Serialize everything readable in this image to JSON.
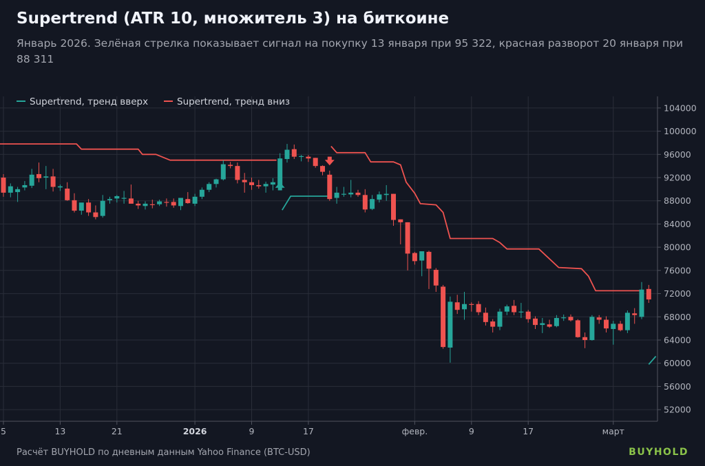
{
  "title": "Supertrend (ATR 10, множитель 3) на биткоине",
  "subtitle": "Январь 2026. Зелёная стрелка показывает сигнал на покупку 13 января при 95 322, красная разворот 20 января при 88 311",
  "footer": "Расчёт BUYHOLD по дневным данным Yahoo Finance (BTC-USD)",
  "brand": "BUYHOLD",
  "colors": {
    "background": "#131722",
    "up": "#26a69a",
    "down": "#ef5350",
    "grid": "#2a2e39",
    "text": "#b2b5be"
  },
  "chart_data": {
    "type": "candlestick",
    "title": "Supertrend (ATR 10, множитель 3) на биткоине",
    "ylim": [
      50000,
      106000
    ],
    "grid": true,
    "legend_position": "top-left",
    "yticks": [
      52000,
      56000,
      60000,
      64000,
      68000,
      72000,
      76000,
      80000,
      84000,
      88000,
      92000,
      96000,
      100000,
      104000
    ],
    "ytick_labels": [
      "52000",
      "56000",
      "60000",
      "64000",
      "68000",
      "72000",
      "76000",
      "80000",
      "84000",
      "88000",
      "92000",
      "96000",
      "100000",
      "104000"
    ],
    "xticks": [
      {
        "label": "5",
        "day": 0,
        "bold": false
      },
      {
        "label": "13",
        "day": 8,
        "bold": false
      },
      {
        "label": "21",
        "day": 16,
        "bold": false
      },
      {
        "label": "2026",
        "day": 27,
        "bold": true
      },
      {
        "label": "9",
        "day": 35,
        "bold": false
      },
      {
        "label": "17",
        "day": 43,
        "bold": false
      },
      {
        "label": "февр.",
        "day": 58,
        "bold": false
      },
      {
        "label": "9",
        "day": 66,
        "bold": false
      },
      {
        "label": "17",
        "day": 74,
        "bold": false
      },
      {
        "label": "март",
        "day": 86,
        "bold": false
      }
    ],
    "legend": [
      {
        "label": "Supertrend, тренд вверх",
        "color": "#26a69a"
      },
      {
        "label": "Supertrend, тренд вниз",
        "color": "#ef5350"
      }
    ],
    "candles": [
      [
        0,
        92000,
        92600,
        88700,
        89400
      ],
      [
        1,
        89400,
        91000,
        88600,
        90500
      ],
      [
        2,
        89500,
        90400,
        87800,
        90000
      ],
      [
        3,
        90300,
        91400,
        89800,
        90700
      ],
      [
        4,
        90600,
        93500,
        90200,
        92500
      ],
      [
        5,
        92600,
        94600,
        91200,
        91900
      ],
      [
        6,
        92000,
        94000,
        90000,
        92200
      ],
      [
        7,
        92200,
        93500,
        89600,
        90400
      ],
      [
        8,
        90300,
        90800,
        89700,
        90500
      ],
      [
        9,
        90100,
        91200,
        88000,
        88100
      ],
      [
        10,
        88100,
        89300,
        86000,
        86300
      ],
      [
        11,
        86300,
        87600,
        85600,
        87700
      ],
      [
        12,
        87700,
        88300,
        85400,
        86000
      ],
      [
        13,
        86000,
        87200,
        84800,
        85200
      ],
      [
        14,
        85400,
        89000,
        85100,
        88000
      ],
      [
        15,
        88100,
        88700,
        87500,
        88300
      ],
      [
        16,
        88400,
        89000,
        87700,
        88800
      ],
      [
        17,
        88400,
        89700,
        87500,
        88500
      ],
      [
        18,
        88400,
        90800,
        87600,
        87500
      ],
      [
        19,
        87500,
        88000,
        86600,
        87200
      ],
      [
        20,
        87100,
        87900,
        86500,
        87500
      ],
      [
        21,
        87400,
        88200,
        86700,
        87300
      ],
      [
        22,
        87400,
        88200,
        87100,
        87900
      ],
      [
        23,
        87800,
        88400,
        87000,
        87700
      ],
      [
        24,
        87800,
        88400,
        86800,
        87200
      ],
      [
        25,
        87100,
        88400,
        86400,
        88500
      ],
      [
        26,
        88300,
        89500,
        87500,
        87600
      ],
      [
        27,
        87500,
        89200,
        87100,
        88700
      ],
      [
        28,
        88700,
        90300,
        88300,
        89900
      ],
      [
        29,
        89900,
        91200,
        89500,
        90900
      ],
      [
        30,
        90900,
        91800,
        90300,
        91700
      ],
      [
        31,
        91700,
        95000,
        91500,
        94300
      ],
      [
        32,
        94200,
        94700,
        93600,
        94000
      ],
      [
        33,
        94000,
        94600,
        91000,
        91600
      ],
      [
        34,
        91600,
        92800,
        89400,
        91200
      ],
      [
        35,
        91200,
        92000,
        89900,
        90700
      ],
      [
        36,
        90700,
        91600,
        90100,
        90500
      ],
      [
        37,
        90500,
        91300,
        89400,
        90900
      ],
      [
        38,
        90800,
        91900,
        89800,
        91200
      ],
      [
        39,
        90600,
        96200,
        90400,
        95300
      ],
      [
        40,
        95200,
        97800,
        94600,
        96800
      ],
      [
        41,
        96900,
        97700,
        95200,
        95600
      ],
      [
        42,
        95600,
        95900,
        94800,
        95700
      ],
      [
        43,
        95600,
        95900,
        94700,
        95300
      ],
      [
        44,
        95400,
        95400,
        93700,
        94000
      ],
      [
        45,
        94000,
        94100,
        92400,
        93000
      ],
      [
        46,
        92500,
        93200,
        88000,
        88300
      ],
      [
        47,
        88500,
        90400,
        87500,
        89400
      ],
      [
        48,
        89100,
        90400,
        88700,
        89200
      ],
      [
        49,
        89100,
        91600,
        88600,
        89400
      ],
      [
        50,
        89400,
        89900,
        88700,
        89000
      ],
      [
        51,
        89000,
        90000,
        86000,
        86500
      ],
      [
        52,
        86600,
        89000,
        86400,
        88300
      ],
      [
        53,
        88200,
        89600,
        87700,
        89100
      ],
      [
        54,
        89000,
        90700,
        88000,
        89200
      ],
      [
        55,
        89200,
        89200,
        83700,
        84700
      ],
      [
        56,
        84800,
        84800,
        80500,
        84300
      ],
      [
        57,
        84300,
        84300,
        76000,
        78900
      ],
      [
        58,
        79000,
        79200,
        77000,
        77600
      ],
      [
        59,
        77700,
        79300,
        75000,
        79300
      ],
      [
        60,
        79200,
        79400,
        72800,
        76300
      ],
      [
        61,
        76100,
        76400,
        72300,
        73400
      ],
      [
        62,
        73200,
        73500,
        62500,
        62800
      ],
      [
        63,
        62700,
        71500,
        60100,
        70600
      ],
      [
        64,
        70500,
        71800,
        68500,
        69200
      ],
      [
        65,
        69300,
        72300,
        67500,
        70200
      ],
      [
        66,
        70200,
        70500,
        68900,
        70100
      ],
      [
        67,
        70200,
        70700,
        68300,
        68800
      ],
      [
        68,
        68700,
        69600,
        66500,
        67100
      ],
      [
        69,
        67200,
        67600,
        65300,
        66300
      ],
      [
        70,
        66300,
        69400,
        65700,
        68900
      ],
      [
        71,
        68900,
        70100,
        68300,
        69800
      ],
      [
        72,
        69900,
        70900,
        68300,
        68800
      ],
      [
        73,
        68800,
        70400,
        67800,
        68900
      ],
      [
        74,
        68900,
        69200,
        67000,
        67600
      ],
      [
        75,
        67700,
        68100,
        65900,
        66600
      ],
      [
        76,
        66600,
        67800,
        65200,
        66900
      ],
      [
        77,
        66700,
        67500,
        66100,
        66300
      ],
      [
        78,
        66400,
        68300,
        66200,
        67800
      ],
      [
        79,
        67800,
        68400,
        67300,
        67900
      ],
      [
        80,
        68000,
        68400,
        67200,
        67400
      ],
      [
        81,
        67400,
        67600,
        64400,
        64500
      ],
      [
        82,
        64500,
        65300,
        62600,
        64000
      ],
      [
        83,
        64000,
        68300,
        63900,
        68000
      ],
      [
        84,
        67900,
        68300,
        66800,
        67500
      ],
      [
        85,
        67500,
        68100,
        65300,
        66000
      ],
      [
        86,
        65900,
        67300,
        63200,
        66800
      ],
      [
        87,
        66800,
        67300,
        65500,
        65700
      ],
      [
        88,
        65700,
        69100,
        65200,
        68700
      ],
      [
        89,
        68600,
        69500,
        66800,
        68300
      ],
      [
        90,
        68000,
        74000,
        67600,
        72700
      ],
      [
        91,
        72800,
        73500,
        70400,
        71000
      ]
    ],
    "supertrend_down": [
      [
        [
          -0.5,
          97800
        ],
        [
          10.3,
          97800
        ],
        [
          11,
          96900
        ],
        [
          19,
          96900
        ],
        [
          19.6,
          96000
        ],
        [
          21.5,
          96000
        ],
        [
          23.5,
          95000
        ],
        [
          38.5,
          95000
        ]
      ],
      [
        [
          46.2,
          97400
        ],
        [
          47,
          96300
        ],
        [
          51,
          96300
        ],
        [
          51.8,
          94700
        ],
        [
          55,
          94700
        ],
        [
          56,
          94200
        ],
        [
          56.8,
          91200
        ],
        [
          58,
          89300
        ],
        [
          58.8,
          87500
        ],
        [
          61,
          87300
        ],
        [
          62,
          86000
        ],
        [
          63,
          81500
        ],
        [
          69,
          81500
        ],
        [
          70,
          80800
        ],
        [
          71,
          79700
        ],
        [
          75.5,
          79700
        ],
        [
          78.3,
          76500
        ],
        [
          81.5,
          76300
        ],
        [
          82.5,
          75000
        ],
        [
          83.5,
          72500
        ],
        [
          90,
          72500
        ]
      ]
    ],
    "supertrend_up": [
      [
        [
          39.3,
          86400
        ],
        [
          40.5,
          88800
        ],
        [
          46.3,
          88800
        ]
      ],
      [
        [
          91,
          59800
        ],
        [
          92,
          61200
        ]
      ]
    ],
    "signals": [
      {
        "type": "buy",
        "day": 39,
        "value": 95322,
        "arrow_top": 91200,
        "arrow_bottom": 89800
      },
      {
        "type": "sell",
        "day": 46,
        "value": 88311,
        "arrow_top": 95600,
        "arrow_bottom": 94100
      }
    ]
  }
}
